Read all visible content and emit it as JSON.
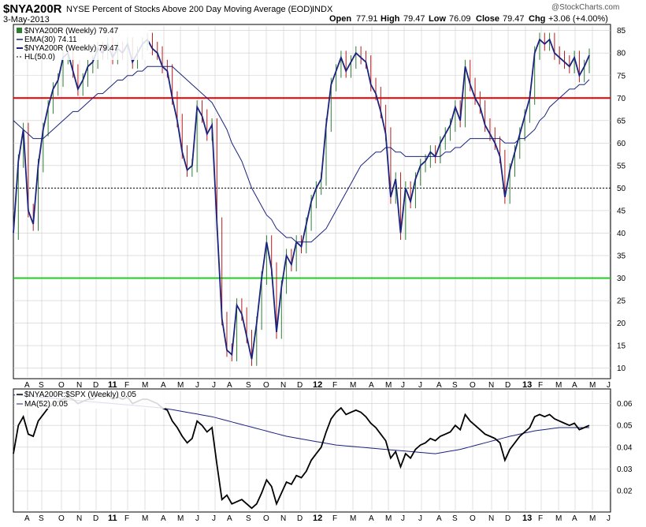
{
  "header": {
    "symbol": "$NYA200R",
    "description": "NYSE Percent of Stocks Above 200 Day Moving Average (EOD)",
    "exchange": "INDX",
    "date": "3-May-2013",
    "watermark": "@StockCharts.com",
    "open_label": "Open",
    "open_value": "77.91",
    "high_label": "High",
    "high_value": "79.47",
    "low_label": "Low",
    "low_value": "76.09",
    "close_label": "Close",
    "close_value": "79.47",
    "chg_label": "Chg",
    "chg_value": "+3.06 (+4.00%)"
  },
  "legend": {
    "title": "$NYA200R (Weekly) 79.47",
    "ema": "EMA(30) 74.11",
    "series": "$NYA200R (Weekly) 79.47",
    "hl": "HL(50.0)"
  },
  "lower_legend": {
    "title": "$NYA200R:$SPX (Weekly) 0.05",
    "ma": "MA(52) 0.05"
  },
  "colors": {
    "price_line": "#1a237e",
    "ema_line": "#1a237e",
    "up_bar": "#2e7d32",
    "down_bar": "#b71c1c",
    "hl70": "#e00000",
    "hl30": "#22cc22",
    "hl50": "#000000",
    "ratio_line": "#000000",
    "ratio_ma": "#1a237e",
    "grid": "#cccccc"
  },
  "chart_data": [
    {
      "type": "line",
      "title": "$NYA200R NYSE Percent of Stocks Above 200 Day Moving Average (EOD)",
      "ylim": [
        8,
        86
      ],
      "y_ticks": [
        10,
        15,
        20,
        25,
        30,
        35,
        40,
        45,
        50,
        55,
        60,
        65,
        70,
        75,
        80,
        85
      ],
      "x_labels": [
        "A",
        "S",
        "O",
        "N",
        "D",
        "11",
        "F",
        "M",
        "A",
        "M",
        "J",
        "J",
        "A",
        "S",
        "O",
        "N",
        "D",
        "12",
        "F",
        "M",
        "A",
        "M",
        "J",
        "J",
        "A",
        "S",
        "O",
        "N",
        "D",
        "13",
        "F",
        "M",
        "A",
        "M",
        "J"
      ],
      "horizontal_lines": [
        70,
        50,
        30
      ],
      "series": [
        {
          "name": "$NYA200R (Weekly) 79.47",
          "values": [
            40,
            56,
            63,
            45,
            42,
            55,
            63,
            68,
            72,
            74,
            79,
            80,
            76,
            72,
            74,
            77,
            78,
            81,
            80,
            82,
            79,
            81,
            80,
            82,
            78,
            80,
            82,
            83,
            81,
            80,
            77,
            76,
            70,
            65,
            58,
            54,
            55,
            68,
            66,
            62,
            64,
            42,
            21,
            14,
            13,
            24,
            22,
            17,
            12,
            20,
            30,
            38,
            32,
            18,
            28,
            35,
            33,
            38,
            37,
            42,
            47,
            50,
            52,
            64,
            73,
            76,
            79,
            76,
            78,
            80,
            79,
            78,
            73,
            71,
            67,
            62,
            48,
            52,
            40,
            50,
            47,
            52,
            55,
            56,
            58,
            57,
            60,
            62,
            64,
            68,
            65,
            77,
            73,
            70,
            68,
            64,
            62,
            60,
            57,
            48,
            54,
            58,
            62,
            66,
            70,
            80,
            83,
            82,
            83,
            80,
            79,
            78,
            77,
            79,
            75,
            77,
            79.5
          ]
        },
        {
          "name": "EMA(30) 74.11",
          "values": [
            65,
            64,
            63,
            62,
            61,
            61,
            61,
            62,
            63,
            64,
            65,
            66,
            67,
            67,
            68,
            69,
            70,
            71,
            71,
            72,
            73,
            74,
            74,
            75,
            75,
            76,
            76,
            77,
            77,
            77,
            77,
            77,
            77,
            76,
            75,
            74,
            73,
            72,
            71,
            70,
            69,
            67,
            65,
            63,
            60,
            58,
            56,
            53,
            50,
            48,
            46,
            44,
            43,
            41,
            40,
            39,
            39,
            38,
            38,
            38,
            38,
            39,
            40,
            41,
            43,
            45,
            47,
            49,
            51,
            53,
            55,
            56,
            57,
            58,
            58,
            59,
            59,
            58,
            58,
            57,
            57,
            57,
            57,
            57,
            57,
            57,
            57,
            58,
            58,
            59,
            59,
            60,
            61,
            61,
            61,
            61,
            61,
            61,
            61,
            60,
            60,
            60,
            61,
            61,
            62,
            63,
            65,
            66,
            68,
            69,
            70,
            71,
            72,
            72,
            73,
            73,
            74.11
          ]
        }
      ]
    },
    {
      "type": "line",
      "title": "$NYA200R:$SPX (Weekly) 0.05",
      "ylim": [
        0.011,
        0.066
      ],
      "y_ticks": [
        0.02,
        0.03,
        0.04,
        0.05,
        0.06
      ],
      "x_labels": [
        "A",
        "S",
        "O",
        "N",
        "D",
        "11",
        "F",
        "M",
        "A",
        "M",
        "J",
        "J",
        "A",
        "S",
        "O",
        "N",
        "D",
        "12",
        "F",
        "M",
        "A",
        "M",
        "J",
        "J",
        "A",
        "S",
        "O",
        "N",
        "D",
        "13",
        "F",
        "M",
        "A",
        "M",
        "J"
      ],
      "series": [
        {
          "name": "$NYA200R:$SPX (Weekly) 0.05",
          "values": [
            0.037,
            0.05,
            0.054,
            0.046,
            0.045,
            0.052,
            0.055,
            0.058,
            0.06,
            0.061,
            0.062,
            0.063,
            0.062,
            0.06,
            0.061,
            0.062,
            0.062,
            0.064,
            0.063,
            0.064,
            0.062,
            0.063,
            0.062,
            0.063,
            0.06,
            0.061,
            0.062,
            0.062,
            0.061,
            0.06,
            0.058,
            0.057,
            0.052,
            0.049,
            0.045,
            0.042,
            0.044,
            0.052,
            0.05,
            0.047,
            0.049,
            0.032,
            0.016,
            0.018,
            0.014,
            0.015,
            0.016,
            0.014,
            0.012,
            0.014,
            0.019,
            0.025,
            0.022,
            0.014,
            0.019,
            0.024,
            0.023,
            0.027,
            0.026,
            0.029,
            0.034,
            0.037,
            0.04,
            0.047,
            0.053,
            0.056,
            0.058,
            0.055,
            0.056,
            0.057,
            0.056,
            0.054,
            0.051,
            0.049,
            0.046,
            0.043,
            0.035,
            0.038,
            0.031,
            0.037,
            0.035,
            0.039,
            0.041,
            0.042,
            0.044,
            0.043,
            0.045,
            0.046,
            0.047,
            0.05,
            0.048,
            0.055,
            0.052,
            0.05,
            0.048,
            0.046,
            0.045,
            0.044,
            0.042,
            0.034,
            0.039,
            0.042,
            0.045,
            0.047,
            0.049,
            0.054,
            0.055,
            0.054,
            0.055,
            0.053,
            0.052,
            0.051,
            0.05,
            0.051,
            0.048,
            0.049,
            0.05
          ]
        },
        {
          "name": "MA(52) 0.05",
          "values": [
            0.064,
            0.0638,
            0.0636,
            0.0634,
            0.0632,
            0.063,
            0.0628,
            0.0626,
            0.0624,
            0.0622,
            0.062,
            0.0618,
            0.0616,
            0.0614,
            0.0612,
            0.061,
            0.0608,
            0.0606,
            0.0604,
            0.0602,
            0.06,
            0.0598,
            0.0596,
            0.0594,
            0.0592,
            0.059,
            0.0588,
            0.0586,
            0.0584,
            0.0582,
            0.058,
            0.0576,
            0.0572,
            0.0568,
            0.0564,
            0.056,
            0.0556,
            0.0552,
            0.0548,
            0.0544,
            0.054,
            0.0534,
            0.0528,
            0.0522,
            0.0516,
            0.051,
            0.0504,
            0.0498,
            0.0492,
            0.0486,
            0.048,
            0.0474,
            0.0468,
            0.0462,
            0.0456,
            0.045,
            0.0446,
            0.0442,
            0.0438,
            0.0434,
            0.043,
            0.0426,
            0.0422,
            0.0418,
            0.0414,
            0.041,
            0.0408,
            0.0406,
            0.0404,
            0.0402,
            0.04,
            0.0398,
            0.0396,
            0.0394,
            0.0392,
            0.039,
            0.0388,
            0.0386,
            0.0384,
            0.0382,
            0.038,
            0.0378,
            0.0376,
            0.0374,
            0.0372,
            0.037,
            0.0374,
            0.0378,
            0.0382,
            0.0386,
            0.039,
            0.0396,
            0.0402,
            0.0408,
            0.0414,
            0.042,
            0.0426,
            0.0432,
            0.0438,
            0.0444,
            0.045,
            0.0455,
            0.046,
            0.0465,
            0.047,
            0.0475,
            0.0478,
            0.0481,
            0.0484,
            0.0487,
            0.049,
            0.049,
            0.049,
            0.049,
            0.049,
            0.049,
            0.049
          ]
        }
      ]
    }
  ]
}
